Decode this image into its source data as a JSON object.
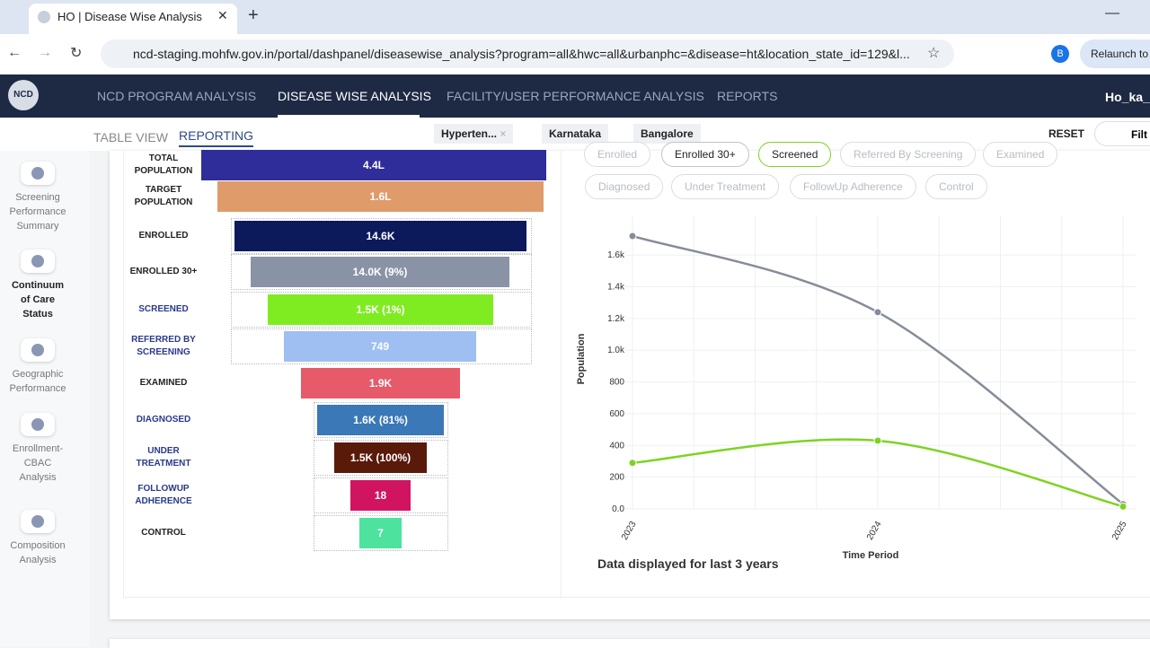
{
  "browser": {
    "tab_title": "HO | Disease Wise Analysis",
    "url": "ncd-staging.mohfw.gov.in/portal/dashpanel/diseasewise_analysis?program=all&hwc=all&urbanphc=&disease=ht&location_state_id=129&l...",
    "profile": "B",
    "relaunch": "Relaunch to u"
  },
  "nav": {
    "logo": "NCD",
    "items": [
      "NCD PROGRAM ANALYSIS",
      "DISEASE WISE ANALYSIS",
      "FACILITY/USER PERFORMANCE ANALYSIS",
      "REPORTS"
    ],
    "active": 1,
    "user": "Ho_ka_b"
  },
  "subnav": {
    "tabs": [
      "TABLE VIEW",
      "REPORTING"
    ],
    "active": 1,
    "filters": [
      "Hyperten...",
      "Karnataka",
      "Bangalore"
    ],
    "reset": "RESET",
    "filter": "Filt"
  },
  "sidebar": {
    "items": [
      "Screening Performance Summary",
      "Continuum of Care Status",
      "Geographic Performance",
      "Enrollment-CBAC Analysis",
      "Composition Analysis"
    ],
    "active": 1
  },
  "funnel": {
    "rows": [
      {
        "label": "TOTAL POPULATION",
        "value": "4.4L",
        "color": "#2e2d9a"
      },
      {
        "label": "TARGET POPULATION",
        "value": "1.6L",
        "color": "#e09b6a"
      },
      {
        "label": "ENROLLED",
        "value": "14.6K",
        "color": "#0c1a5c"
      },
      {
        "label": "ENROLLED 30+",
        "value": "14.0K (9%)",
        "color": "#8a93a5"
      },
      {
        "label": "SCREENED",
        "value": "1.5K (1%)",
        "color": "#7fec22"
      },
      {
        "label": "REFERRED BY SCREENING",
        "value": "749",
        "color": "#9fbff2"
      },
      {
        "label": "EXAMINED",
        "value": "1.9K",
        "color": "#e65a6a"
      },
      {
        "label": "DIAGNOSED",
        "value": "1.6K (81%)",
        "color": "#3a78b8"
      },
      {
        "label": "UNDER TREATMENT",
        "value": "1.5K (100%)",
        "color": "#5a1a0a"
      },
      {
        "label": "FOLLOWUP ADHERENCE",
        "value": "18",
        "color": "#d01460"
      },
      {
        "label": "CONTROL",
        "value": "7",
        "color": "#4de39f"
      }
    ]
  },
  "chips": [
    "Enrolled",
    "Referred By Screening",
    "Examined",
    "Diagnosed",
    "Under Treatment",
    "FollowUp Adherence",
    "Control"
  ],
  "chart_data": {
    "type": "line",
    "categories": [
      "2023",
      "2024",
      "2025"
    ],
    "series": [
      {
        "name": "Enrolled 30+",
        "color": "#868c98",
        "values": [
          1720,
          1240,
          30
        ]
      },
      {
        "name": "Screened",
        "color": "#7ed321",
        "values": [
          290,
          430,
          15
        ]
      }
    ],
    "ylim": [
      0,
      1850
    ],
    "yticks": [
      {
        "value": 0,
        "label": "0.0"
      },
      200,
      400,
      600,
      800,
      {
        "value": 1000,
        "label": "1.0k"
      },
      {
        "value": 1200,
        "label": "1.2k"
      },
      {
        "value": 1400,
        "label": "1.4k"
      },
      {
        "value": 1600,
        "label": "1.6k"
      }
    ],
    "y_label": "Population",
    "x_label": "Time Period",
    "grid": true,
    "note": "Data displayed for last 3 years"
  }
}
